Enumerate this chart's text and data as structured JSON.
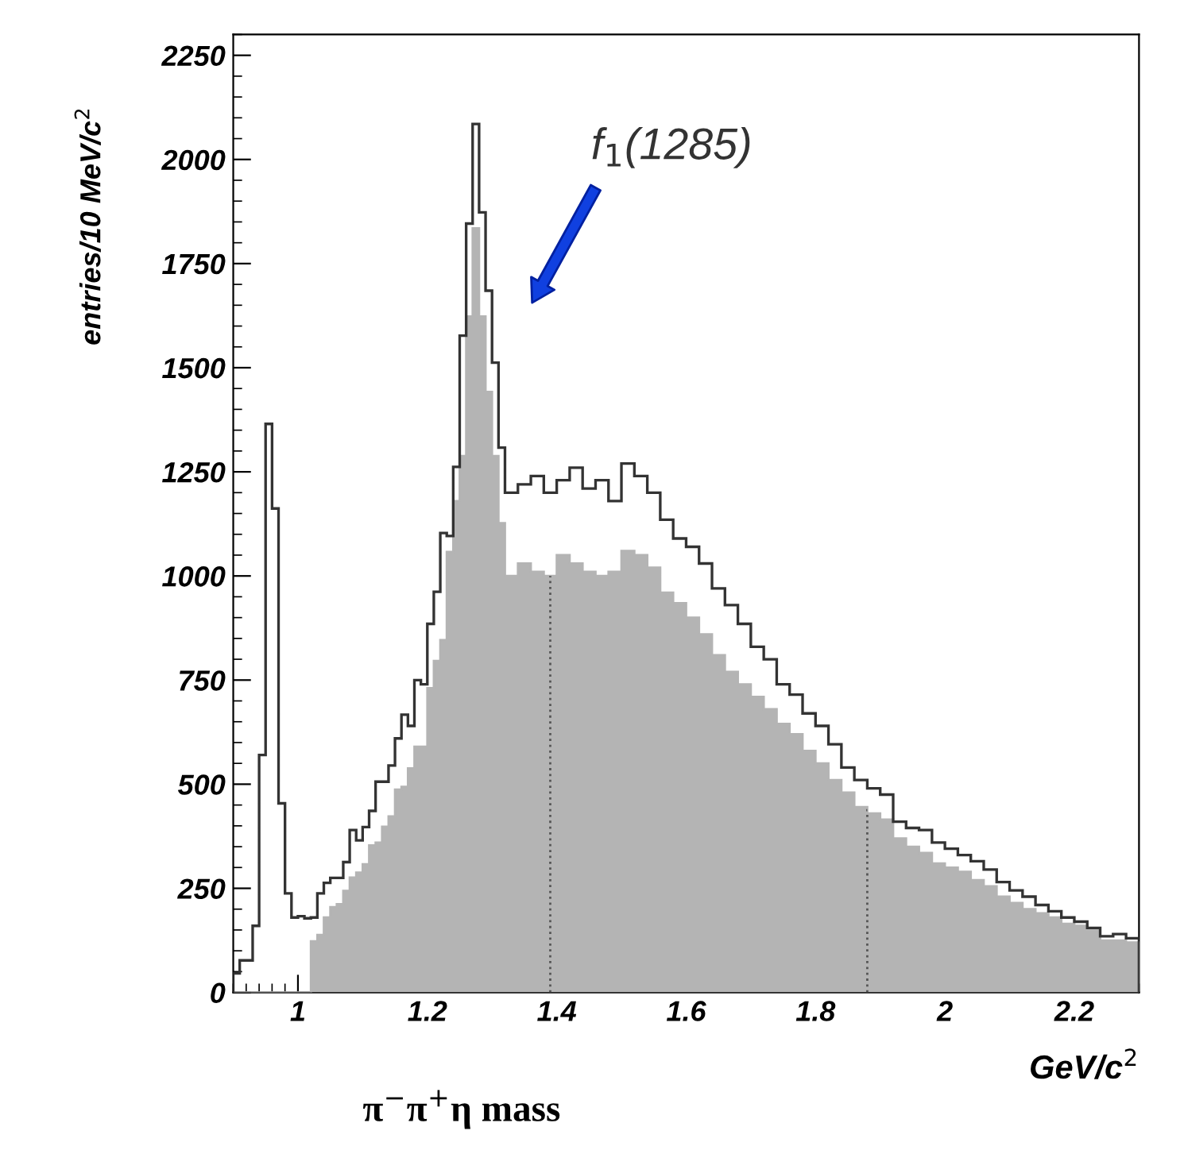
{
  "chart_data": {
    "type": "histogram",
    "ylabel": "entries/10 MeV/c$^{2}$",
    "xlabel": "GeV/c$^{2}$",
    "annotations": [
      "f$_{1}$(1285)",
      "π$^{−}$π$^{+}$η mass"
    ],
    "bins": [
      0.9,
      0.91,
      0.92,
      0.93,
      0.94,
      0.95,
      0.96,
      0.97,
      0.98,
      0.99,
      1.0,
      1.01,
      1.02,
      1.03,
      1.04,
      1.05,
      1.06,
      1.07,
      1.08,
      1.09,
      1.1,
      1.11,
      1.12,
      1.13,
      1.14,
      1.15,
      1.16,
      1.17,
      1.18,
      1.19,
      1.2,
      1.21,
      1.22,
      1.23,
      1.24,
      1.25,
      1.26,
      1.27,
      1.28,
      1.29,
      1.3,
      1.31,
      1.32,
      1.34,
      1.36,
      1.38,
      1.4,
      1.42,
      1.44,
      1.46,
      1.48,
      1.5,
      1.52,
      1.54,
      1.56,
      1.58,
      1.6,
      1.62,
      1.64,
      1.66,
      1.68,
      1.7,
      1.72,
      1.74,
      1.76,
      1.78,
      1.8,
      1.82,
      1.84,
      1.86,
      1.88,
      1.9,
      1.92,
      1.94,
      1.96,
      1.98,
      2.0,
      2.02,
      2.04,
      2.06,
      2.08,
      2.1,
      2.12,
      2.14,
      2.16,
      2.18,
      2.2,
      2.22,
      2.24,
      2.26,
      2.28,
      2.3
    ],
    "series": [
      {
        "color": "#333333",
        "values": [
          46,
          77,
          77,
          160,
          570,
          1365,
          1162,
          454,
          238,
          180,
          183,
          178,
          180,
          238,
          263,
          275,
          275,
          313,
          390,
          365,
          397,
          436,
          506,
          506,
          545,
          610,
          667,
          640,
          750,
          740,
          885,
          962,
          1103,
          1096,
          1262,
          1577,
          1846,
          2085,
          1873,
          1685,
          1512,
          1308,
          1200,
          1220,
          1240,
          1200,
          1230,
          1260,
          1210,
          1230,
          1180,
          1270,
          1240,
          1200,
          1135,
          1090,
          1070,
          1030,
          970,
          930,
          885,
          830,
          800,
          740,
          715,
          670,
          640,
          596,
          540,
          510,
          490,
          475,
          410,
          395,
          390,
          360,
          345,
          330,
          315,
          295,
          265,
          245,
          230,
          210,
          195,
          180,
          170,
          155,
          135,
          140,
          130
        ]
      },
      {
        "color": "#b4b4b4",
        "values": [
          0,
          0,
          0,
          0,
          0,
          0,
          0,
          0,
          0,
          0,
          0,
          0,
          123,
          138,
          180,
          205,
          212,
          244,
          276,
          288,
          308,
          353,
          360,
          398,
          423,
          487,
          494,
          538,
          590,
          590,
          731,
          796,
          846,
          1058,
          1180,
          1288,
          1623,
          1835,
          1623,
          1442,
          1288,
          1127,
          1000,
          1030,
          1010,
          1000,
          1050,
          1030,
          1010,
          1000,
          1010,
          1060,
          1050,
          1020,
          960,
          935,
          900,
          860,
          810,
          770,
          740,
          710,
          680,
          645,
          620,
          580,
          550,
          510,
          480,
          445,
          430,
          415,
          370,
          350,
          335,
          310,
          300,
          290,
          270,
          255,
          230,
          215,
          200,
          190,
          180,
          165,
          160,
          150,
          125,
          125,
          120
        ]
      }
    ],
    "ref_lines": [
      {
        "axis": "x",
        "value": 1.39,
        "color": "#555555",
        "line_style": "dotted"
      },
      {
        "axis": "x",
        "value": 1.88,
        "color": "#555555",
        "line_style": "dotted"
      }
    ],
    "xlim": [
      0.9,
      2.3
    ],
    "xticks": [
      1,
      1.2,
      1.4,
      1.6,
      1.8,
      2,
      2.2
    ],
    "ylim": [
      0,
      2300
    ],
    "yticks": [
      0,
      250,
      500,
      750,
      1000,
      1250,
      1500,
      1750,
      2000,
      2250
    ],
    "grid": false,
    "legend": false
  }
}
